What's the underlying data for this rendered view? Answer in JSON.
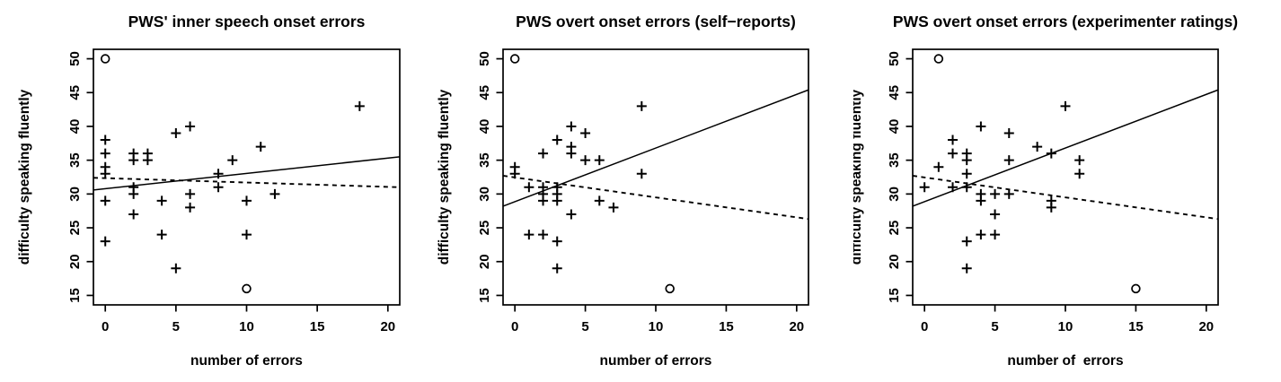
{
  "figure": {
    "background": "#ffffff",
    "ink": "#000000",
    "description_text": "Three-panel base-R style scatter plots with plus markers, circle outliers, one solid and one dashed fit line per panel"
  },
  "chart_data": [
    {
      "type": "scatter",
      "title": "PWS' inner speech onset errors",
      "xlabel": "number of errors",
      "ylabel": "difficulty speaking fluently",
      "xlim": [
        -0.84,
        20.84
      ],
      "ylim": [
        13.6,
        51.4
      ],
      "xticks": [
        0,
        5,
        10,
        15,
        20
      ],
      "yticks": [
        15,
        20,
        25,
        30,
        35,
        40,
        45,
        50
      ],
      "grid": false,
      "legend": "none",
      "series": [
        {
          "name": "participants",
          "marker": "plus",
          "points": [
            [
              0,
              38
            ],
            [
              0,
              36
            ],
            [
              0,
              34
            ],
            [
              0,
              33
            ],
            [
              0,
              29
            ],
            [
              0,
              23
            ],
            [
              2,
              36
            ],
            [
              2,
              35
            ],
            [
              2,
              31
            ],
            [
              2,
              30
            ],
            [
              2,
              27
            ],
            [
              3,
              36
            ],
            [
              3,
              35
            ],
            [
              4,
              29
            ],
            [
              4,
              24
            ],
            [
              5,
              39
            ],
            [
              5,
              19
            ],
            [
              6,
              40
            ],
            [
              6,
              30
            ],
            [
              6,
              28
            ],
            [
              8,
              33
            ],
            [
              8,
              31
            ],
            [
              9,
              35
            ],
            [
              10,
              29
            ],
            [
              10,
              24
            ],
            [
              11,
              37
            ],
            [
              12,
              30
            ],
            [
              18,
              43
            ]
          ]
        },
        {
          "name": "outliers",
          "marker": "circle",
          "points": [
            [
              0,
              50
            ],
            [
              10,
              16
            ]
          ]
        }
      ],
      "fit_lines": [
        {
          "style": "solid",
          "x": [
            -0.84,
            20.84
          ],
          "y": [
            30.6,
            35.5
          ]
        },
        {
          "style": "dashed",
          "x": [
            -0.84,
            20.84
          ],
          "y": [
            32.4,
            31.0
          ]
        }
      ]
    },
    {
      "type": "scatter",
      "title": "PWS overt onset errors (self−reports)",
      "xlabel": "number of errors",
      "ylabel": "difficulty speaking fluently",
      "xlim": [
        -0.84,
        20.84
      ],
      "ylim": [
        13.6,
        51.4
      ],
      "xticks": [
        0,
        5,
        10,
        15,
        20
      ],
      "yticks": [
        15,
        20,
        25,
        30,
        35,
        40,
        45,
        50
      ],
      "grid": false,
      "legend": "none",
      "series": [
        {
          "name": "participants",
          "marker": "plus",
          "points": [
            [
              0,
              34
            ],
            [
              0,
              33
            ],
            [
              1,
              31
            ],
            [
              1,
              24
            ],
            [
              2,
              36
            ],
            [
              2,
              31
            ],
            [
              2,
              30
            ],
            [
              2,
              29
            ],
            [
              2,
              24
            ],
            [
              3,
              38
            ],
            [
              3,
              31
            ],
            [
              3,
              30
            ],
            [
              3,
              29
            ],
            [
              3,
              23
            ],
            [
              3,
              19
            ],
            [
              4,
              40
            ],
            [
              4,
              37
            ],
            [
              4,
              36
            ],
            [
              4,
              27
            ],
            [
              5,
              39
            ],
            [
              5,
              35
            ],
            [
              6,
              35
            ],
            [
              6,
              29
            ],
            [
              7,
              28
            ],
            [
              9,
              43
            ],
            [
              9,
              33
            ]
          ]
        },
        {
          "name": "outliers",
          "marker": "circle",
          "points": [
            [
              0,
              50
            ],
            [
              11,
              16
            ]
          ]
        }
      ],
      "fit_lines": [
        {
          "style": "solid",
          "x": [
            -0.84,
            20.84
          ],
          "y": [
            28.2,
            45.4
          ]
        },
        {
          "style": "dashed",
          "x": [
            -0.84,
            20.84
          ],
          "y": [
            32.7,
            26.3
          ]
        }
      ]
    },
    {
      "type": "scatter",
      "title": "PWS overt onset errors (experimenter ratings)",
      "xlabel": "number of  errors",
      "ylabel": "difficulty speaking fluently",
      "xlim": [
        -0.84,
        20.84
      ],
      "ylim": [
        13.6,
        51.4
      ],
      "xticks": [
        0,
        5,
        10,
        15,
        20
      ],
      "yticks": [
        15,
        20,
        25,
        30,
        35,
        40,
        45,
        50
      ],
      "grid": false,
      "legend": "none",
      "series": [
        {
          "name": "participants",
          "marker": "plus",
          "points": [
            [
              0,
              31
            ],
            [
              1,
              34
            ],
            [
              2,
              38
            ],
            [
              2,
              36
            ],
            [
              2,
              31
            ],
            [
              3,
              36
            ],
            [
              3,
              35
            ],
            [
              3,
              33
            ],
            [
              3,
              31
            ],
            [
              3,
              23
            ],
            [
              3,
              19
            ],
            [
              4,
              40
            ],
            [
              4,
              30
            ],
            [
              4,
              29
            ],
            [
              4,
              24
            ],
            [
              5,
              30
            ],
            [
              5,
              27
            ],
            [
              5,
              24
            ],
            [
              6,
              39
            ],
            [
              6,
              35
            ],
            [
              6,
              30
            ],
            [
              8,
              37
            ],
            [
              9,
              36
            ],
            [
              9,
              29
            ],
            [
              9,
              28
            ],
            [
              10,
              43
            ],
            [
              11,
              35
            ],
            [
              11,
              33
            ]
          ]
        },
        {
          "name": "outliers",
          "marker": "circle",
          "points": [
            [
              1,
              50
            ],
            [
              15,
              16
            ]
          ]
        }
      ],
      "fit_lines": [
        {
          "style": "solid",
          "x": [
            -0.84,
            20.84
          ],
          "y": [
            28.2,
            45.4
          ]
        },
        {
          "style": "dashed",
          "x": [
            -0.84,
            20.84
          ],
          "y": [
            32.7,
            26.3
          ]
        }
      ]
    }
  ]
}
